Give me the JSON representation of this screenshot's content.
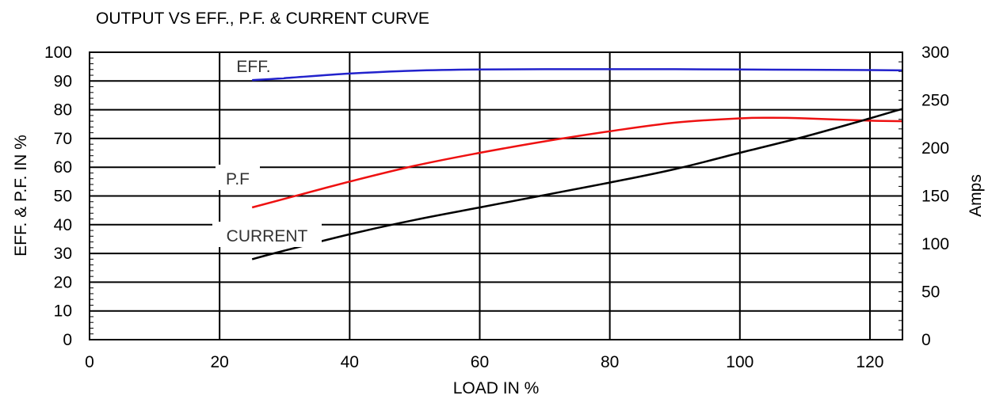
{
  "chart_data": {
    "type": "line",
    "title": "OUTPUT VS EFF., P.F. & CURRENT CURVE",
    "xlabel": "LOAD IN %",
    "ylabel": "EFF. & P.F. IN %",
    "y2label": "Amps",
    "xlim": [
      0,
      125
    ],
    "ylim": [
      0,
      100
    ],
    "y2lim": [
      0,
      300
    ],
    "x_ticks": [
      "0",
      "20",
      "40",
      "60",
      "80",
      "100",
      "120"
    ],
    "y_ticks": [
      "0",
      "10",
      "20",
      "30",
      "40",
      "50",
      "60",
      "70",
      "80",
      "90",
      "100"
    ],
    "y2_ticks": [
      "0",
      "50",
      "100",
      "150",
      "200",
      "250",
      "300"
    ],
    "grid": true,
    "series": [
      {
        "name": "EFF.",
        "axis": "left",
        "color": "#2222cc",
        "x": [
          25,
          30,
          40,
          50,
          60,
          70,
          80,
          90,
          100,
          110,
          120,
          125
        ],
        "y": [
          90.3,
          91.0,
          92.6,
          93.6,
          94.0,
          94.1,
          94.1,
          94.1,
          94.0,
          93.9,
          93.8,
          93.7
        ]
      },
      {
        "name": "P.F",
        "axis": "left",
        "color": "#ee1111",
        "x": [
          25,
          30,
          40,
          50,
          60,
          70,
          80,
          90,
          100,
          105,
          110,
          120,
          125
        ],
        "y": [
          46,
          49,
          55,
          60.5,
          65,
          69,
          72.5,
          75.5,
          77,
          77.2,
          77,
          76.2,
          76
        ]
      },
      {
        "name": "CURRENT",
        "axis": "right",
        "color": "#000000",
        "x": [
          25,
          30,
          40,
          50,
          60,
          70,
          80,
          90,
          100,
          110,
          120,
          125
        ],
        "y": [
          84,
          93,
          110,
          125,
          138,
          151,
          164,
          178,
          195,
          212,
          231,
          241
        ]
      }
    ]
  }
}
